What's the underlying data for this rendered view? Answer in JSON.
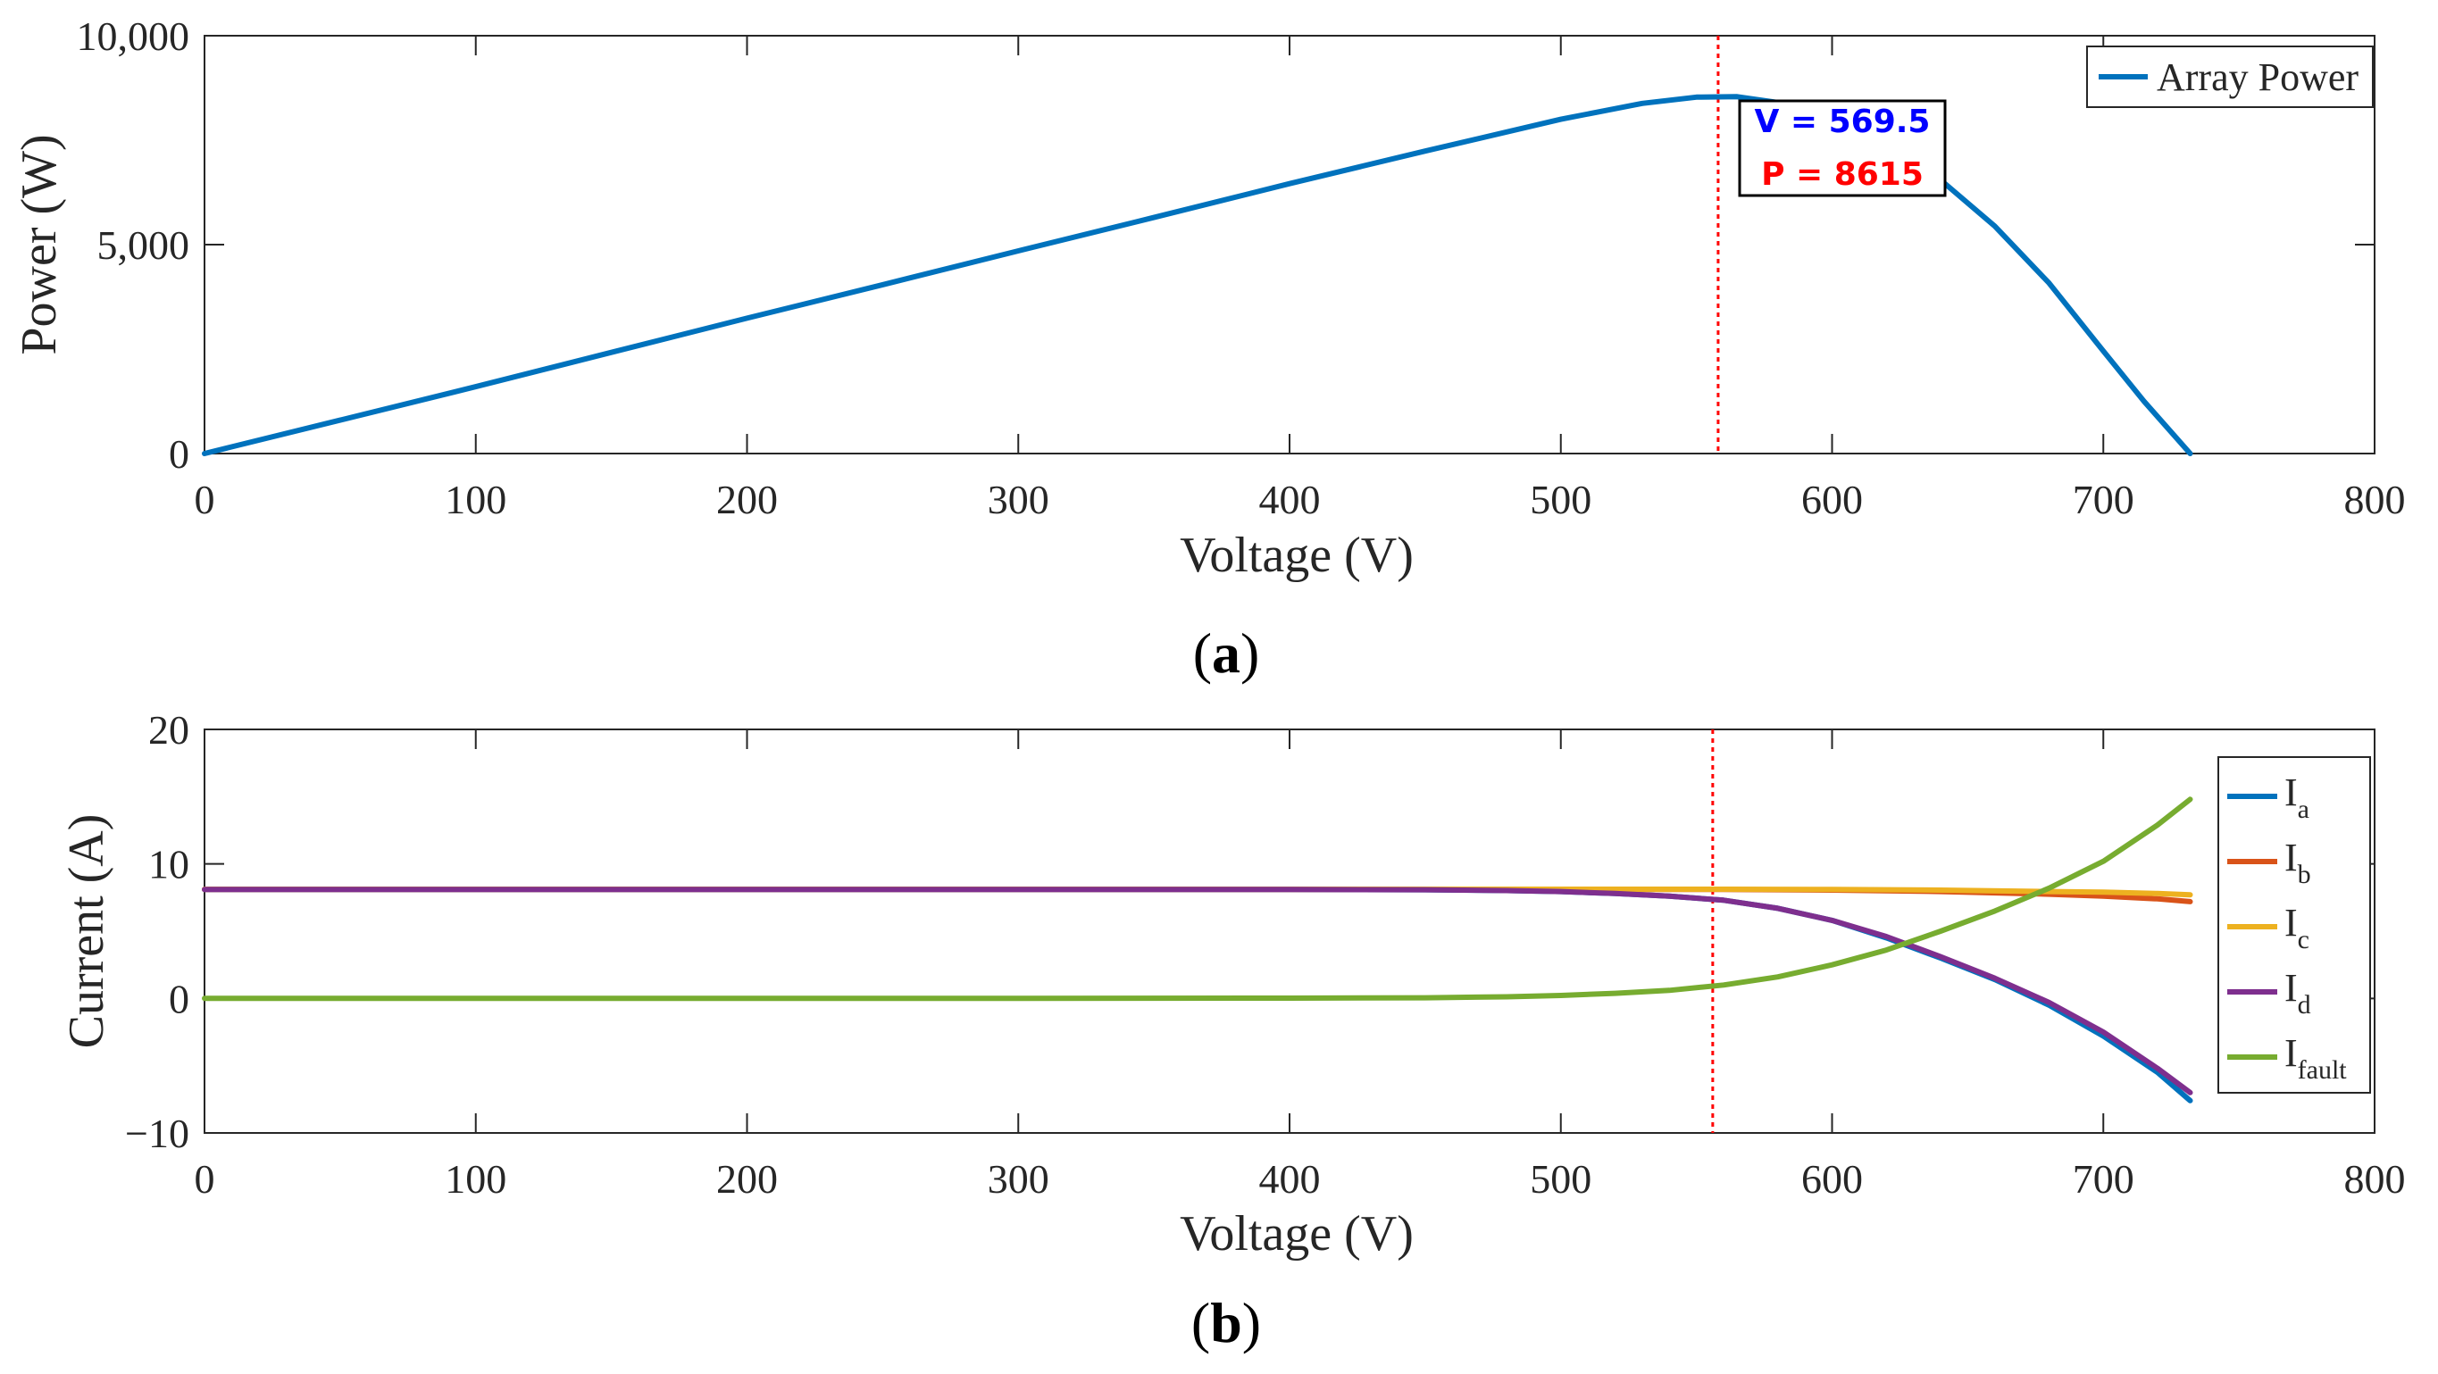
{
  "chart_data": [
    {
      "panel": "a",
      "panel_label": "a",
      "type": "line",
      "xlabel": "Voltage (V)",
      "ylabel": "Power (W)",
      "xlim": [
        0,
        800
      ],
      "ylim": [
        0,
        10000
      ],
      "xticks": [
        0,
        100,
        200,
        300,
        400,
        500,
        600,
        700,
        800
      ],
      "xtick_labels": [
        "0",
        "100",
        "200",
        "300",
        "400",
        "500",
        "600",
        "700",
        "800"
      ],
      "yticks": [
        0,
        5000,
        10000
      ],
      "ytick_labels": [
        "0",
        "5,000",
        "10,000"
      ],
      "marker_line_x": 558,
      "datatip": {
        "v_label": "V = 569.5",
        "p_label": "P = 8615",
        "v_color": "#0000ff",
        "p_color": "#ff0000"
      },
      "series": [
        {
          "name": "Array Power",
          "color": "#0072bd",
          "x": [
            0,
            50,
            100,
            150,
            200,
            250,
            300,
            350,
            400,
            450,
            500,
            530,
            550,
            565,
            580,
            600,
            620,
            640,
            660,
            680,
            700,
            715,
            732
          ],
          "y": [
            0,
            800,
            1600,
            2420,
            3240,
            4040,
            4850,
            5650,
            6460,
            7240,
            8000,
            8380,
            8530,
            8540,
            8400,
            8020,
            7420,
            6550,
            5440,
            4080,
            2450,
            1250,
            0
          ]
        }
      ]
    },
    {
      "panel": "b",
      "panel_label": "b",
      "type": "line",
      "xlabel": "Voltage (V)",
      "ylabel": "Current (A)",
      "xlim": [
        0,
        800
      ],
      "ylim": [
        -10,
        20
      ],
      "xticks": [
        0,
        100,
        200,
        300,
        400,
        500,
        600,
        700,
        800
      ],
      "xtick_labels": [
        "0",
        "100",
        "200",
        "300",
        "400",
        "500",
        "600",
        "700",
        "800"
      ],
      "yticks": [
        -10,
        0,
        10,
        20
      ],
      "ytick_labels": [
        "−10",
        "0",
        "10",
        "20"
      ],
      "marker_line_x": 556,
      "series": [
        {
          "name": "I",
          "sub": "a",
          "color": "#0072bd",
          "x": [
            0,
            100,
            200,
            300,
            400,
            450,
            480,
            500,
            520,
            540,
            560,
            580,
            600,
            620,
            640,
            660,
            680,
            700,
            720,
            732
          ],
          "y": [
            8.1,
            8.1,
            8.1,
            8.1,
            8.1,
            8.08,
            8.02,
            7.95,
            7.8,
            7.6,
            7.3,
            6.7,
            5.8,
            4.5,
            3.0,
            1.4,
            -0.5,
            -2.8,
            -5.5,
            -7.6
          ]
        },
        {
          "name": "I",
          "sub": "b",
          "color": "#d95319",
          "x": [
            0,
            200,
            400,
            560,
            600,
            640,
            680,
            700,
            720,
            732
          ],
          "y": [
            8.1,
            8.1,
            8.1,
            8.1,
            8.05,
            7.95,
            7.75,
            7.6,
            7.4,
            7.2
          ]
        },
        {
          "name": "I",
          "sub": "c",
          "color": "#edb120",
          "x": [
            0,
            200,
            400,
            560,
            600,
            640,
            680,
            700,
            720,
            732
          ],
          "y": [
            8.12,
            8.12,
            8.12,
            8.12,
            8.1,
            8.05,
            7.95,
            7.9,
            7.8,
            7.7
          ]
        },
        {
          "name": "I",
          "sub": "d",
          "color": "#7e2f8e",
          "x": [
            0,
            100,
            200,
            300,
            400,
            450,
            480,
            500,
            520,
            540,
            560,
            580,
            600,
            620,
            640,
            660,
            680,
            700,
            720,
            732
          ],
          "y": [
            8.1,
            8.1,
            8.1,
            8.1,
            8.1,
            8.08,
            8.02,
            7.95,
            7.8,
            7.6,
            7.3,
            6.7,
            5.8,
            4.6,
            3.1,
            1.5,
            -0.3,
            -2.5,
            -5.2,
            -7.0
          ]
        },
        {
          "name": "I",
          "sub": "fault",
          "color": "#77ac30",
          "x": [
            0,
            100,
            200,
            300,
            400,
            450,
            480,
            500,
            520,
            540,
            560,
            580,
            600,
            620,
            640,
            660,
            680,
            700,
            720,
            732
          ],
          "y": [
            0,
            0,
            0,
            0,
            0.02,
            0.05,
            0.12,
            0.22,
            0.38,
            0.6,
            1.0,
            1.6,
            2.5,
            3.6,
            5.0,
            6.5,
            8.2,
            10.2,
            12.9,
            14.8
          ]
        }
      ]
    }
  ]
}
